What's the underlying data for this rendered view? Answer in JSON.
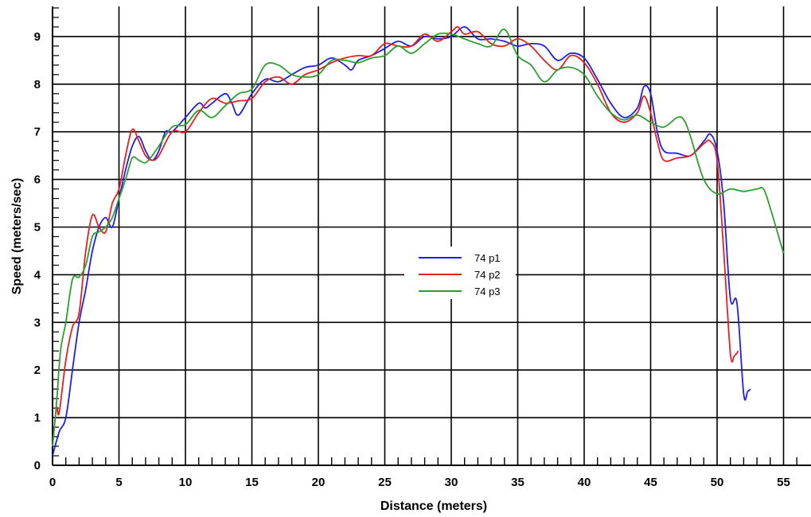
{
  "chart_data": {
    "type": "line",
    "xlabel": "Distance (meters)",
    "ylabel": "Speed (meters/sec)",
    "xlim": [
      0,
      57
    ],
    "ylim": [
      0,
      9.6
    ],
    "x_ticks": [
      "0",
      "5",
      "10",
      "15",
      "20",
      "25",
      "30",
      "35",
      "40",
      "45",
      "50",
      "55"
    ],
    "y_ticks": [
      "0",
      "1",
      "2",
      "3",
      "4",
      "5",
      "6",
      "7",
      "8",
      "9"
    ],
    "grid": true,
    "legend_position": "center",
    "series": [
      {
        "name": "74 p1",
        "color": "#1f1fe6",
        "x": [
          0,
          0.5,
          1,
          1.5,
          2,
          2.5,
          3,
          3.5,
          4,
          4.5,
          5,
          5.5,
          6,
          6.5,
          7,
          7.5,
          8,
          8.5,
          9,
          10,
          11,
          11.5,
          12,
          13,
          13.5,
          14,
          15,
          16,
          17,
          18,
          19,
          20,
          21,
          22,
          22.5,
          23,
          24,
          25,
          26,
          27,
          28,
          29,
          30,
          31,
          32,
          33,
          34,
          35,
          36,
          37,
          38,
          39,
          40,
          41,
          42,
          43,
          44,
          44.5,
          45,
          45.5,
          46,
          47,
          48,
          49,
          49.5,
          50,
          50.5,
          51,
          51.5,
          52,
          52.3,
          52.5
        ],
        "y": [
          0.2,
          0.7,
          1.0,
          2.0,
          3.0,
          3.7,
          4.5,
          5.0,
          5.2,
          5.0,
          5.6,
          6.2,
          6.7,
          6.9,
          6.6,
          6.4,
          6.6,
          7.0,
          7.0,
          7.3,
          7.6,
          7.5,
          7.6,
          7.8,
          7.6,
          7.35,
          7.8,
          8.1,
          8.05,
          8.2,
          8.35,
          8.4,
          8.55,
          8.4,
          8.3,
          8.5,
          8.6,
          8.75,
          8.9,
          8.8,
          9.0,
          8.95,
          9.0,
          9.2,
          8.95,
          8.95,
          8.9,
          8.8,
          8.85,
          8.8,
          8.5,
          8.65,
          8.55,
          8.1,
          7.6,
          7.3,
          7.5,
          7.95,
          7.8,
          7.0,
          6.6,
          6.55,
          6.5,
          6.8,
          6.95,
          6.6,
          5.5,
          3.5,
          3.4,
          1.5,
          1.55,
          1.6
        ]
      },
      {
        "name": "74 p2",
        "color": "#e61f1f",
        "x": [
          0,
          0.3,
          0.5,
          1,
          1.5,
          2,
          2.5,
          3,
          3.5,
          4,
          4.5,
          5,
          5.5,
          6,
          6.5,
          7,
          7.5,
          8,
          9,
          10,
          11,
          12,
          13,
          14,
          15,
          16,
          17,
          18,
          19,
          20,
          21,
          22,
          23,
          24,
          25,
          26,
          27,
          28,
          29,
          30,
          30.5,
          31,
          32,
          33,
          34,
          35,
          36,
          37,
          38,
          39,
          40,
          41,
          42,
          43,
          44,
          44.5,
          45,
          45.5,
          46,
          47,
          48,
          49,
          49.5,
          50,
          50.5,
          51,
          51.3,
          51.6
        ],
        "y": [
          0.4,
          1.2,
          1.1,
          2.2,
          2.9,
          3.2,
          4.5,
          5.25,
          5.0,
          4.9,
          5.5,
          5.8,
          6.5,
          7.05,
          6.8,
          6.5,
          6.4,
          6.5,
          7.0,
          7.0,
          7.4,
          7.7,
          7.6,
          7.65,
          7.7,
          8.05,
          8.15,
          8.0,
          8.2,
          8.3,
          8.45,
          8.55,
          8.6,
          8.6,
          8.85,
          8.8,
          8.8,
          9.05,
          8.9,
          9.1,
          9.2,
          9.05,
          9.1,
          8.85,
          8.8,
          8.95,
          8.8,
          8.5,
          8.3,
          8.6,
          8.45,
          8.0,
          7.4,
          7.2,
          7.4,
          7.75,
          7.4,
          6.8,
          6.4,
          6.45,
          6.5,
          6.75,
          6.8,
          6.4,
          4.5,
          2.35,
          2.3,
          2.4
        ]
      },
      {
        "name": "74 p3",
        "color": "#2e9e2e",
        "x": [
          0,
          0.3,
          0.6,
          1,
          1.5,
          2,
          2.5,
          3,
          3.5,
          4,
          4.5,
          5,
          5.5,
          6,
          6.5,
          7,
          7.5,
          8,
          9,
          10,
          11,
          12,
          13,
          14,
          15,
          16,
          17,
          18,
          19,
          20,
          21,
          22,
          23,
          24,
          25,
          26,
          27,
          28,
          29,
          30,
          31,
          32,
          33,
          34,
          35,
          36,
          37,
          38,
          39,
          40,
          41,
          42,
          43,
          44,
          45,
          46,
          47,
          47.5,
          48,
          49,
          50,
          51,
          52,
          53,
          53.5,
          54,
          55
        ],
        "y": [
          0.4,
          1.3,
          2.4,
          3.0,
          3.9,
          3.95,
          4.2,
          4.8,
          4.9,
          5.0,
          5.2,
          5.6,
          6.0,
          6.45,
          6.4,
          6.35,
          6.5,
          6.7,
          7.1,
          7.15,
          7.45,
          7.3,
          7.55,
          7.8,
          7.9,
          8.4,
          8.4,
          8.2,
          8.15,
          8.2,
          8.5,
          8.5,
          8.45,
          8.55,
          8.6,
          8.8,
          8.65,
          8.85,
          9.05,
          9.05,
          8.95,
          8.85,
          8.8,
          9.15,
          8.6,
          8.4,
          8.05,
          8.3,
          8.35,
          8.2,
          7.75,
          7.4,
          7.25,
          7.35,
          7.2,
          7.1,
          7.3,
          7.25,
          6.9,
          6.0,
          5.7,
          5.8,
          5.75,
          5.8,
          5.8,
          5.4,
          4.45
        ]
      }
    ]
  }
}
